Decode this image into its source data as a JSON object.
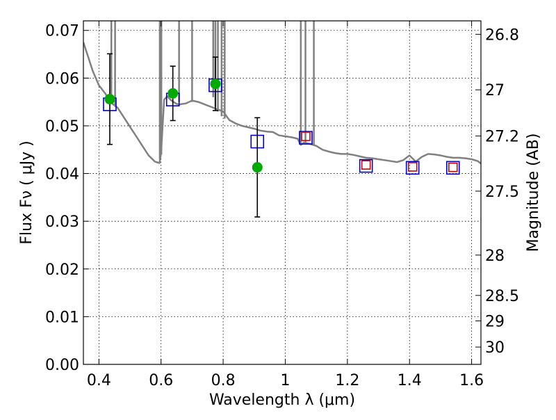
{
  "chart_data": {
    "type": "scatter",
    "xlabel": "Wavelength  λ (μm)",
    "ylabel": "Flux  Fν  ( μJy )",
    "y2label": "Magnitude (AB)",
    "xlim": [
      0.35,
      1.63
    ],
    "ylim": [
      0.0,
      0.072
    ],
    "grid": true,
    "x_ticks": [
      0.4,
      0.6,
      0.8,
      1.0,
      1.2,
      1.4,
      1.6
    ],
    "x_tick_labels": [
      "0.4",
      "0.6",
      "0.8",
      "1",
      "1.2",
      "1.4",
      "1.6"
    ],
    "y_ticks": [
      0.0,
      0.01,
      0.02,
      0.03,
      0.04,
      0.05,
      0.06,
      0.07
    ],
    "y_tick_labels": [
      "0.00",
      "0.01",
      "0.02",
      "0.03",
      "0.04",
      "0.05",
      "0.06",
      "0.07"
    ],
    "y2_ticks": [
      26.8,
      27,
      27.2,
      27.5,
      28,
      28.5,
      29,
      30
    ],
    "y2_tick_labels": [
      "26.8",
      "27",
      "27.2",
      "27.5",
      "28",
      "28.5",
      "29",
      "30"
    ],
    "colors": {
      "model": "#808080",
      "observed": "#00aa00",
      "model_band_box": "#0000cc",
      "predicted_band_box": "#cc0000",
      "errorbar": "#000000"
    },
    "series": [
      {
        "kind": "model_spectrum",
        "x": [
          0.35,
          0.36,
          0.38,
          0.4,
          0.42,
          0.44,
          0.46,
          0.48,
          0.5,
          0.52,
          0.54,
          0.56,
          0.58,
          0.595,
          0.6,
          0.61,
          0.62,
          0.63,
          0.64,
          0.65,
          0.66,
          0.68,
          0.7,
          0.72,
          0.74,
          0.76,
          0.78,
          0.8,
          0.82,
          0.84,
          0.86,
          0.88,
          0.9,
          0.92,
          0.94,
          0.96,
          0.98,
          1.0,
          1.02,
          1.04,
          1.05,
          1.06,
          1.08,
          1.1,
          1.12,
          1.14,
          1.16,
          1.18,
          1.2,
          1.22,
          1.24,
          1.26,
          1.28,
          1.3,
          1.32,
          1.34,
          1.36,
          1.38,
          1.4,
          1.42,
          1.44,
          1.46,
          1.48,
          1.5,
          1.52,
          1.54,
          1.56,
          1.58,
          1.6,
          1.62,
          1.63
        ],
        "y": [
          0.0675,
          0.0655,
          0.0615,
          0.0585,
          0.0568,
          0.0548,
          0.0538,
          0.0518,
          0.0498,
          0.0478,
          0.0458,
          0.0438,
          0.0425,
          0.0422,
          0.0442,
          0.0555,
          0.0562,
          0.0555,
          0.055,
          0.0546,
          0.0545,
          0.0547,
          0.0553,
          0.055,
          0.0545,
          0.054,
          0.0535,
          0.053,
          0.0512,
          0.0505,
          0.05,
          0.0497,
          0.0494,
          0.049,
          0.0488,
          0.0487,
          0.048,
          0.0478,
          0.0476,
          0.0473,
          0.046,
          0.0465,
          0.0462,
          0.0458,
          0.045,
          0.0446,
          0.0443,
          0.0441,
          0.0441,
          0.0439,
          0.0436,
          0.0433,
          0.0432,
          0.043,
          0.0428,
          0.0426,
          0.0424,
          0.0428,
          0.0438,
          0.0425,
          0.0435,
          0.0441,
          0.044,
          0.0438,
          0.0435,
          0.0433,
          0.0433,
          0.0432,
          0.043,
          0.0426,
          0.0421
        ]
      },
      {
        "kind": "emission_spikes",
        "x": [
          0.44,
          0.452,
          0.596,
          0.601,
          0.658,
          0.7,
          0.768,
          0.775,
          0.783,
          0.795,
          0.805,
          1.05,
          1.065,
          1.092
        ],
        "y_from": [
          0.056,
          0.054,
          0.043,
          0.044,
          0.055,
          0.055,
          0.056,
          0.054,
          0.053,
          0.052,
          0.0515,
          0.046,
          0.0465,
          0.046
        ]
      },
      {
        "kind": "observed",
        "x": [
          0.435,
          0.638,
          0.775,
          0.91
        ],
        "y": [
          0.0556,
          0.0568,
          0.0588,
          0.0413
        ],
        "yerr": [
          0.0095,
          0.0057,
          0.0056,
          0.0104
        ]
      },
      {
        "kind": "model_band",
        "x": [
          0.435,
          0.638,
          0.775,
          0.91,
          1.066,
          1.26,
          1.41,
          1.54
        ],
        "y": [
          0.0545,
          0.0555,
          0.0585,
          0.0467,
          0.0475,
          0.0416,
          0.0412,
          0.0412
        ]
      },
      {
        "kind": "predicted_band",
        "x": [
          1.066,
          1.26,
          1.41,
          1.54
        ],
        "y": [
          0.0478,
          0.0418,
          0.0414,
          0.0413
        ]
      }
    ]
  }
}
